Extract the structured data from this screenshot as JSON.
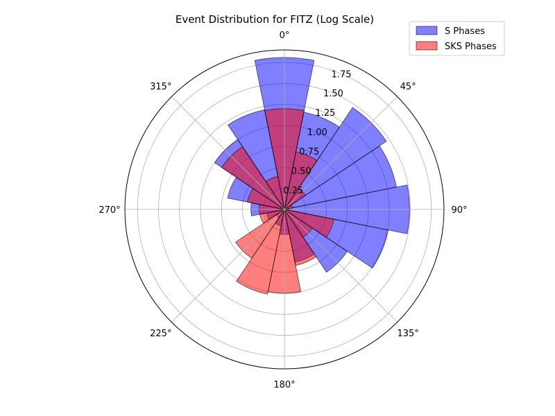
{
  "chart_data": {
    "type": "bar",
    "polar": true,
    "title": "Event Distribution for FITZ (Log Scale)",
    "theta_direction": "clockwise",
    "theta_zero": "top",
    "theta_tick_labels": [
      "0°",
      "45°",
      "90°",
      "135°",
      "180°",
      "225°",
      "270°",
      "315°"
    ],
    "r_tick_labels": [
      "0.25",
      "0.50",
      "0.75",
      "1.00",
      "1.25",
      "1.50",
      "1.75"
    ],
    "r_ticks": [
      0.25,
      0.5,
      0.75,
      1.0,
      1.25,
      1.5,
      1.75
    ],
    "rlim": [
      0,
      1.9
    ],
    "bin_width_deg": 22.5,
    "categories": [
      "0°",
      "22.5°",
      "45°",
      "67.5°",
      "90°",
      "112.5°",
      "135°",
      "157.5°",
      "180°",
      "202.5°",
      "225°",
      "247.5°",
      "270°",
      "292.5°",
      "315°",
      "337.5°"
    ],
    "grid": true,
    "legend_position": "upper right",
    "series": [
      {
        "name": "S Phases",
        "color": "#0000ff",
        "values": [
          1.81,
          1.18,
          1.46,
          1.36,
          1.49,
          1.26,
          0.9,
          0.64,
          0.3,
          0.2,
          0.12,
          0.22,
          0.4,
          0.69,
          1.0,
          1.21
        ]
      },
      {
        "name": "SKS Phases",
        "color": "#ff0000",
        "values": [
          1.2,
          0.7,
          0.3,
          0.1,
          0.05,
          0.6,
          0.4,
          0.68,
          1.0,
          1.03,
          0.7,
          0.3,
          0.3,
          0.45,
          0.9,
          0.4
        ]
      }
    ]
  }
}
